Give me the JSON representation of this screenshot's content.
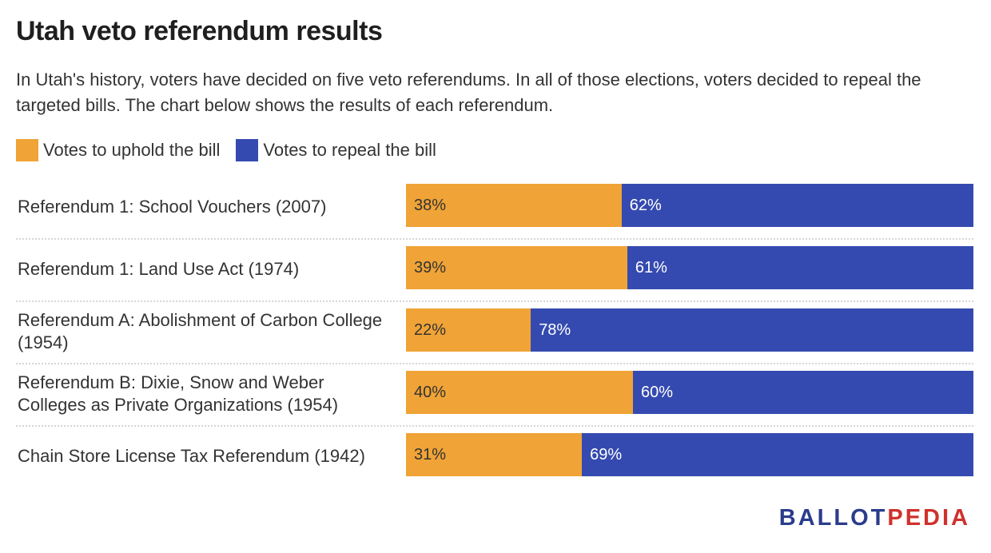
{
  "colors": {
    "uphold": "#f0a336",
    "repeal": "#354ab0"
  },
  "logo": {
    "part1": "BALLOT",
    "part2": "PEDIA"
  },
  "chart_data": {
    "type": "bar",
    "stacked": true,
    "orientation": "horizontal",
    "title": "Utah veto referendum results",
    "subtitle": "In Utah's history, voters have decided on five veto referendums. In all of those elections, voters decided to repeal the targeted bills. The chart below shows the results of each referendum.",
    "legend_position": "top-left",
    "categories": [
      "Referendum 1: School Vouchers (2007)",
      "Referendum 1: Land Use Act (1974)",
      "Referendum A: Abolishment of Carbon College (1954)",
      "Referendum B: Dixie, Snow and Weber Colleges as Private Organizations (1954)",
      "Chain Store License Tax Referendum (1942)"
    ],
    "series": [
      {
        "name": "Votes to uphold the bill",
        "color": "#f0a336",
        "values": [
          38,
          39,
          22,
          40,
          31
        ]
      },
      {
        "name": "Votes to repeal the bill",
        "color": "#354ab0",
        "values": [
          62,
          61,
          78,
          60,
          69
        ]
      }
    ],
    "value_suffix": "%",
    "xlim": [
      0,
      100
    ]
  }
}
